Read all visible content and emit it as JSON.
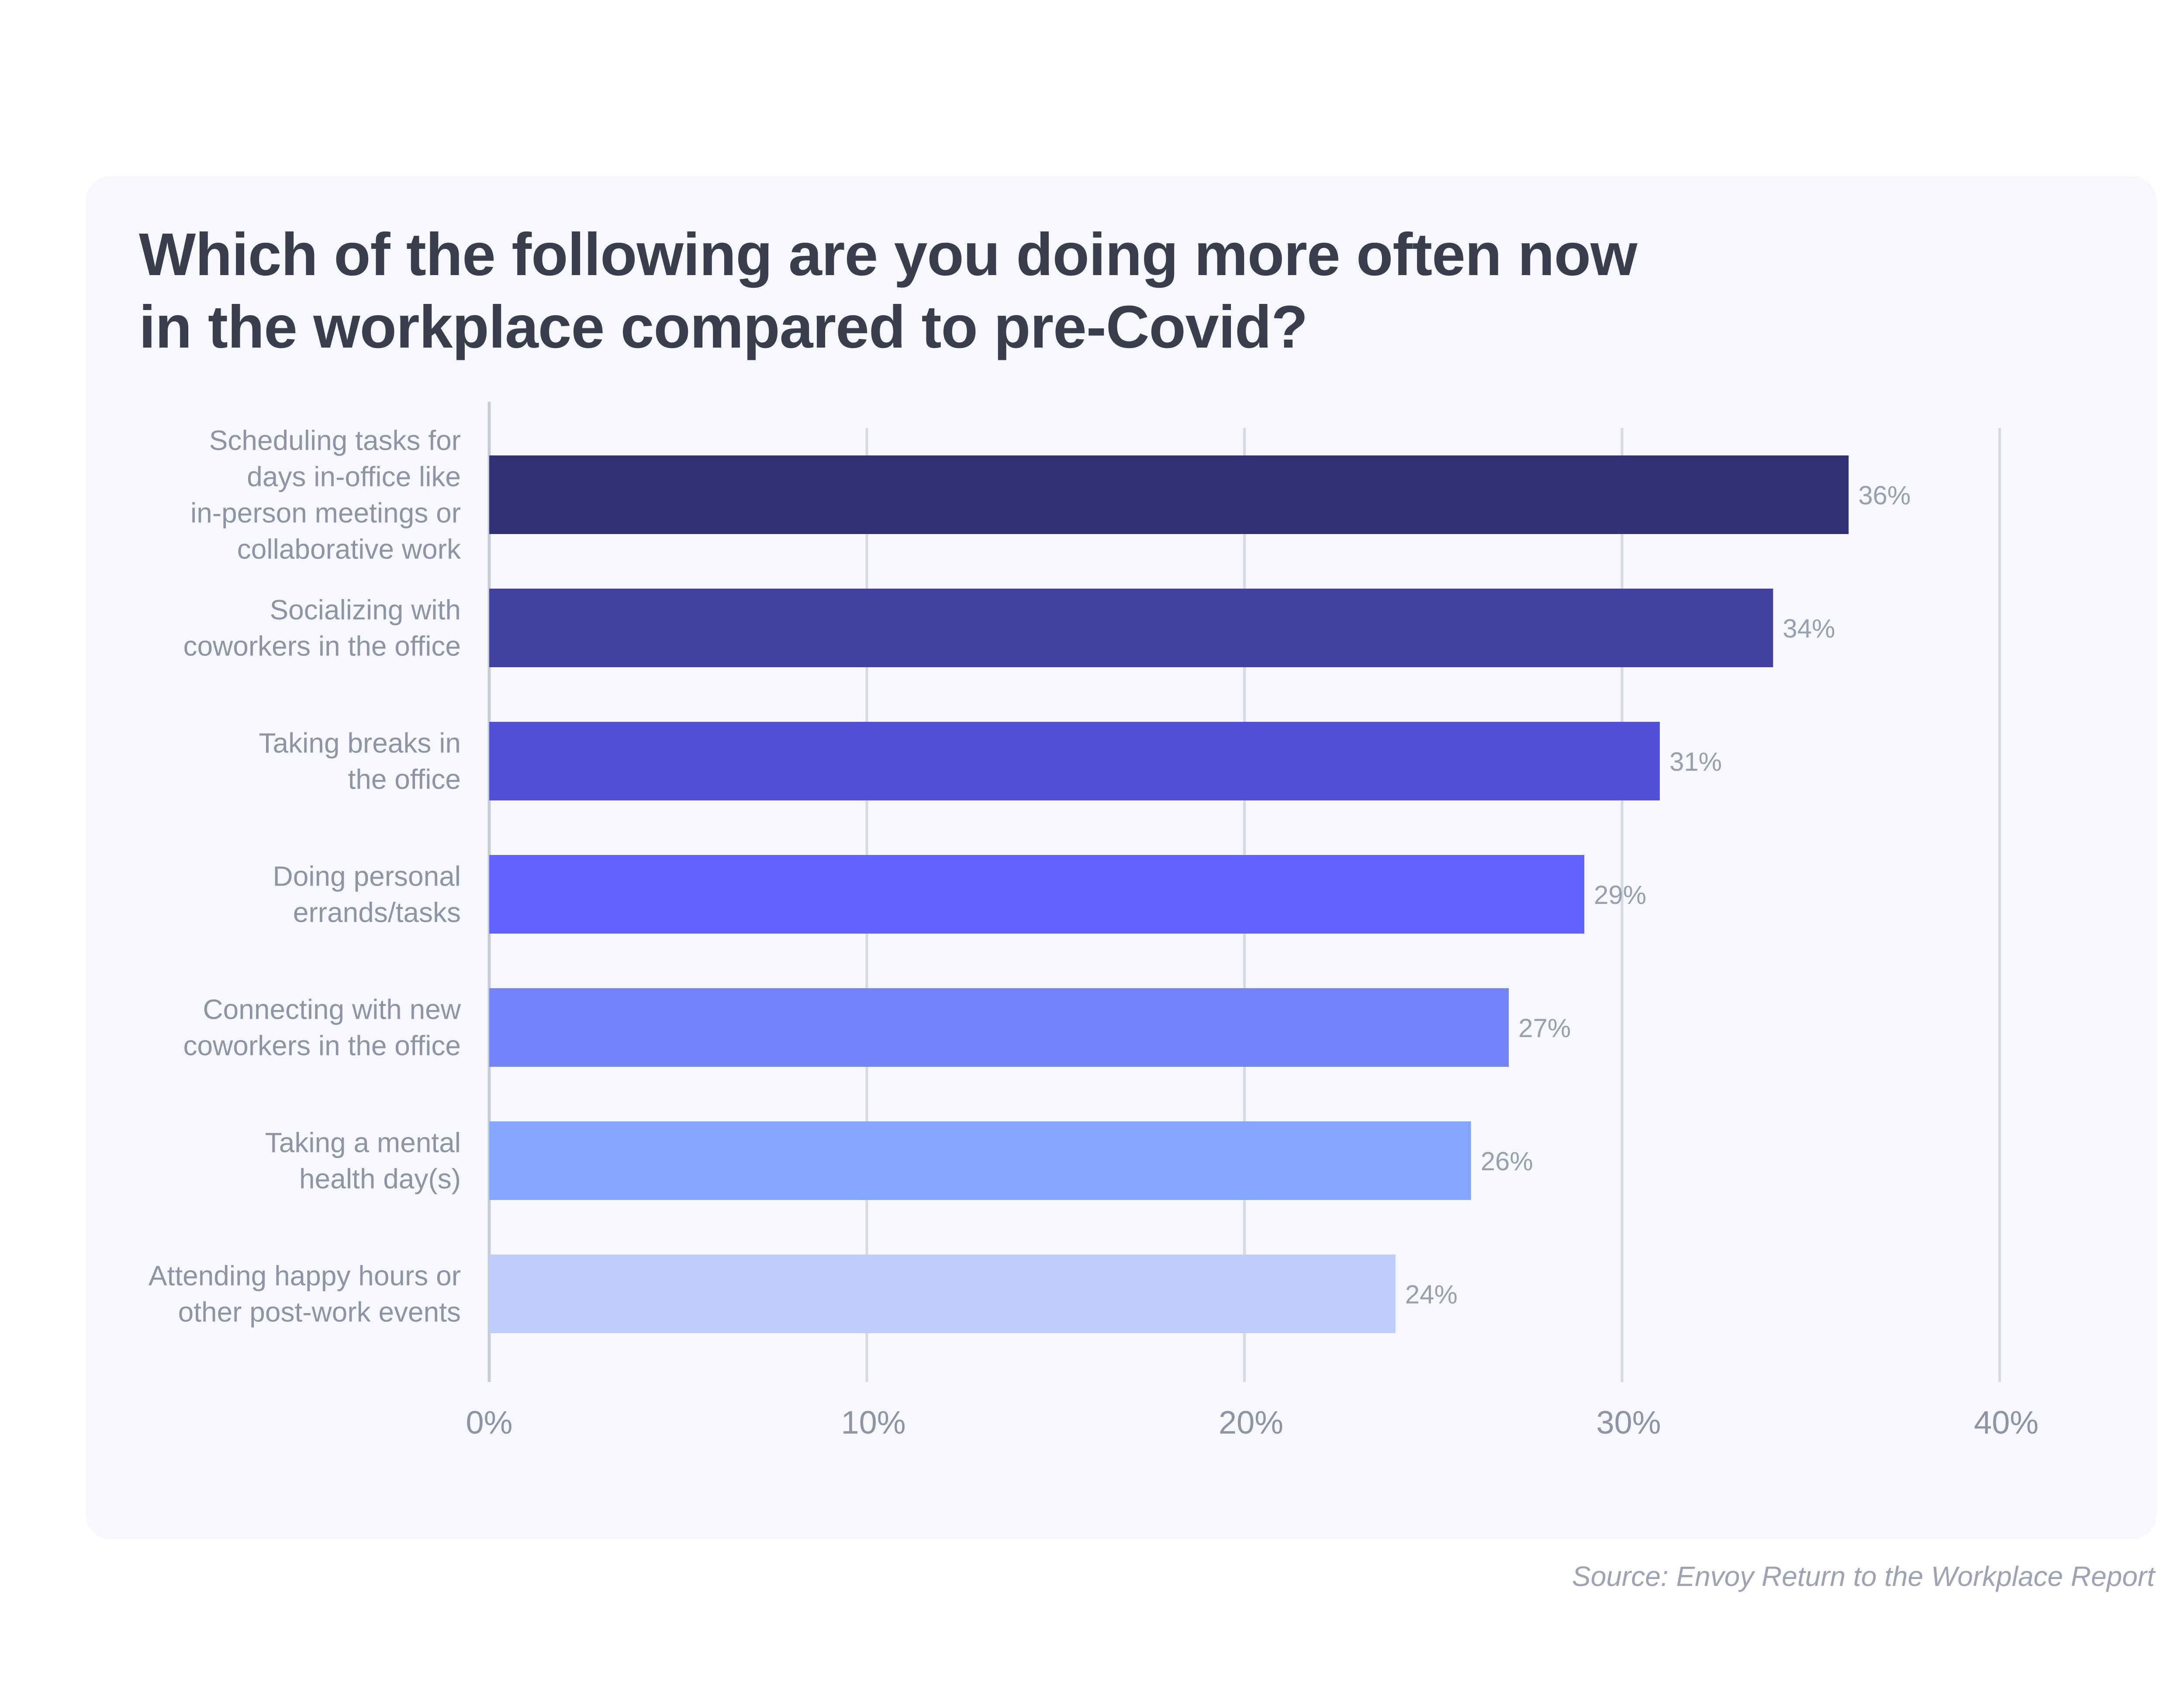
{
  "title": {
    "line1": "Which of the following are you doing more often now",
    "line2": "in the workplace compared to pre-Covid?"
  },
  "source": "Source: Envoy Return to the Workplace Report",
  "chart_data": {
    "type": "bar",
    "orientation": "horizontal",
    "categories": [
      [
        "Scheduling tasks for",
        "days in-office like",
        "in-person meetings or",
        "collaborative work"
      ],
      [
        "Socializing with",
        "coworkers in the office"
      ],
      [
        "Taking breaks in",
        "the office"
      ],
      [
        "Doing personal",
        "errands/tasks"
      ],
      [
        "Connecting with new",
        "coworkers in the office"
      ],
      [
        "Taking a mental",
        "health day(s)"
      ],
      [
        "Attending happy hours or",
        "other post-work events"
      ]
    ],
    "values": [
      36,
      34,
      31,
      29,
      27,
      26,
      24
    ],
    "value_labels": [
      "36%",
      "34%",
      "31%",
      "29%",
      "27%",
      "26%",
      "24%"
    ],
    "bar_colors": [
      "#313178",
      "#40409f",
      "#5050d8",
      "#6262fe",
      "#7183fd",
      "#85a6fd",
      "#bfcdfd"
    ],
    "xlim": [
      0,
      40
    ],
    "ticks": [
      0,
      10,
      20,
      30,
      40
    ],
    "tick_labels": [
      "0%",
      "10%",
      "20%",
      "30%",
      "40%"
    ],
    "grid": true,
    "colors": {
      "grid": "#d8dae3",
      "axis": "#c9ccd6",
      "label": "#8f93a3",
      "value_label": "#9a9eae"
    }
  }
}
